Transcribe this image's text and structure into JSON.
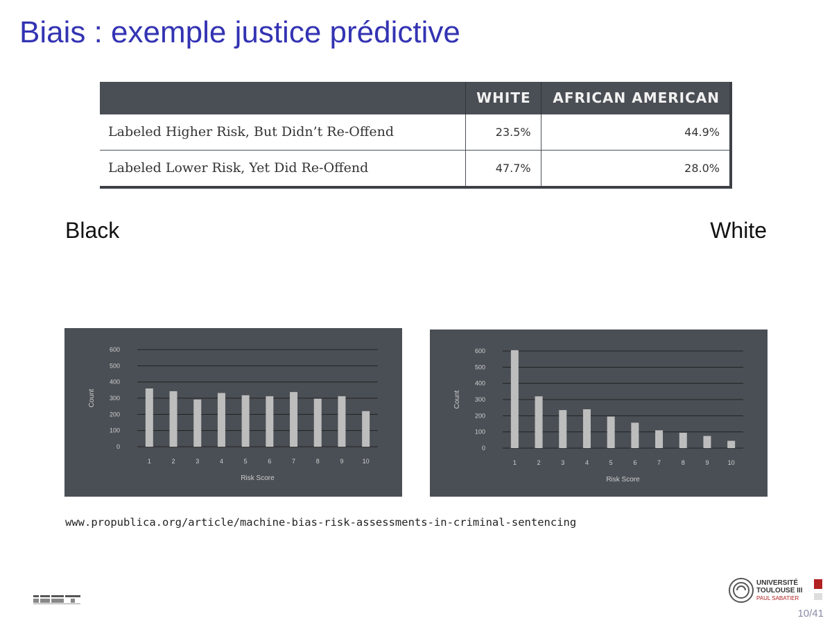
{
  "slide": {
    "title": "Biais : exemple justice prédictive",
    "page_number": "10/41",
    "source_url": "www.propublica.org/article/machine-bias-risk-assessments-in-criminal-sentencing"
  },
  "table": {
    "headers": [
      "",
      "WHITE",
      "AFRICAN AMERICAN"
    ],
    "rows": [
      {
        "label": "Labeled Higher Risk, But Didn’t Re-Offend",
        "white": "23.5%",
        "african_american": "44.9%"
      },
      {
        "label": "Labeled Lower Risk, Yet Did Re-Offend",
        "white": "47.7%",
        "african_american": "28.0%"
      }
    ]
  },
  "labels": {
    "black": "Black",
    "white": "White"
  },
  "logos": {
    "irit": "IRIT",
    "ut3_line1": "UNIVERSITÉ",
    "ut3_line2": "TOULOUSE III",
    "ut3_line3": "PAUL SABATIER"
  },
  "colors": {
    "title": "#3333b3",
    "chart_bg": "#4a4f55",
    "bar": "#bdbdbd",
    "chart_text": "#cfcfcf",
    "grid": "#222222",
    "page_number": "#8a8aa8"
  },
  "chart_data": [
    {
      "type": "bar",
      "id": "black",
      "categories": [
        "1",
        "2",
        "3",
        "4",
        "5",
        "6",
        "7",
        "8",
        "9",
        "10"
      ],
      "values": [
        360,
        343,
        292,
        332,
        318,
        312,
        338,
        297,
        312,
        220
      ],
      "xlabel": "Risk Score",
      "ylabel": "Count",
      "ylim": [
        0,
        600
      ],
      "yticks": [
        0,
        100,
        200,
        300,
        400,
        500,
        600
      ],
      "grid": true
    },
    {
      "type": "bar",
      "id": "white",
      "categories": [
        "1",
        "2",
        "3",
        "4",
        "5",
        "6",
        "7",
        "8",
        "9",
        "10"
      ],
      "values": [
        605,
        320,
        235,
        240,
        195,
        157,
        110,
        95,
        75,
        45
      ],
      "xlabel": "Risk Score",
      "ylabel": "Count",
      "ylim": [
        0,
        600
      ],
      "yticks": [
        0,
        100,
        200,
        300,
        400,
        500,
        600
      ],
      "grid": true
    }
  ]
}
